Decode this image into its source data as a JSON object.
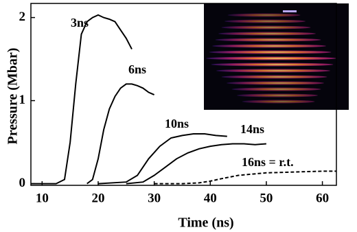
{
  "chart_data": {
    "type": "line",
    "xlabel": "Time (ns)",
    "ylabel": "Pressure (Mbar)",
    "xlim": [
      8,
      62.5
    ],
    "ylim": [
      -0.02,
      2.17
    ],
    "xticks": [
      10,
      20,
      30,
      40,
      50,
      60
    ],
    "yticks": [
      0,
      1,
      2
    ],
    "series": [
      {
        "name": "3ns",
        "color": "#000000",
        "dash": false,
        "x": [
          8,
          12.5,
          14,
          15,
          16,
          17,
          18,
          19,
          20,
          21,
          22,
          23,
          24,
          25,
          26
        ],
        "values": [
          0,
          0,
          0.05,
          0.5,
          1.2,
          1.8,
          1.95,
          2.0,
          2.03,
          2.0,
          1.98,
          1.95,
          1.85,
          1.75,
          1.62
        ]
      },
      {
        "name": "6ns",
        "color": "#000000",
        "dash": false,
        "x": [
          18,
          19,
          20,
          21,
          22,
          23,
          24,
          25,
          26,
          27,
          28,
          29,
          30
        ],
        "values": [
          0,
          0.05,
          0.3,
          0.65,
          0.9,
          1.05,
          1.15,
          1.2,
          1.2,
          1.18,
          1.15,
          1.1,
          1.07
        ]
      },
      {
        "name": "10ns",
        "color": "#000000",
        "dash": false,
        "x": [
          20,
          25,
          27,
          29,
          31,
          33,
          35,
          37,
          39,
          41,
          43
        ],
        "values": [
          0,
          0.02,
          0.1,
          0.3,
          0.45,
          0.55,
          0.58,
          0.6,
          0.6,
          0.58,
          0.57
        ]
      },
      {
        "name": "14ns",
        "color": "#000000",
        "dash": false,
        "x": [
          25,
          28,
          30,
          32,
          34,
          36,
          38,
          40,
          42,
          44,
          46,
          48,
          50
        ],
        "values": [
          0,
          0.02,
          0.1,
          0.2,
          0.3,
          0.37,
          0.42,
          0.45,
          0.47,
          0.48,
          0.48,
          0.47,
          0.48
        ]
      },
      {
        "name": "16ns = r.t.",
        "color": "#000000",
        "dash": true,
        "x": [
          30,
          35,
          38,
          40,
          42,
          45,
          50,
          55,
          60,
          62.5
        ],
        "values": [
          0,
          0,
          0.01,
          0.03,
          0.06,
          0.1,
          0.13,
          0.14,
          0.15,
          0.15
        ]
      }
    ]
  }
}
